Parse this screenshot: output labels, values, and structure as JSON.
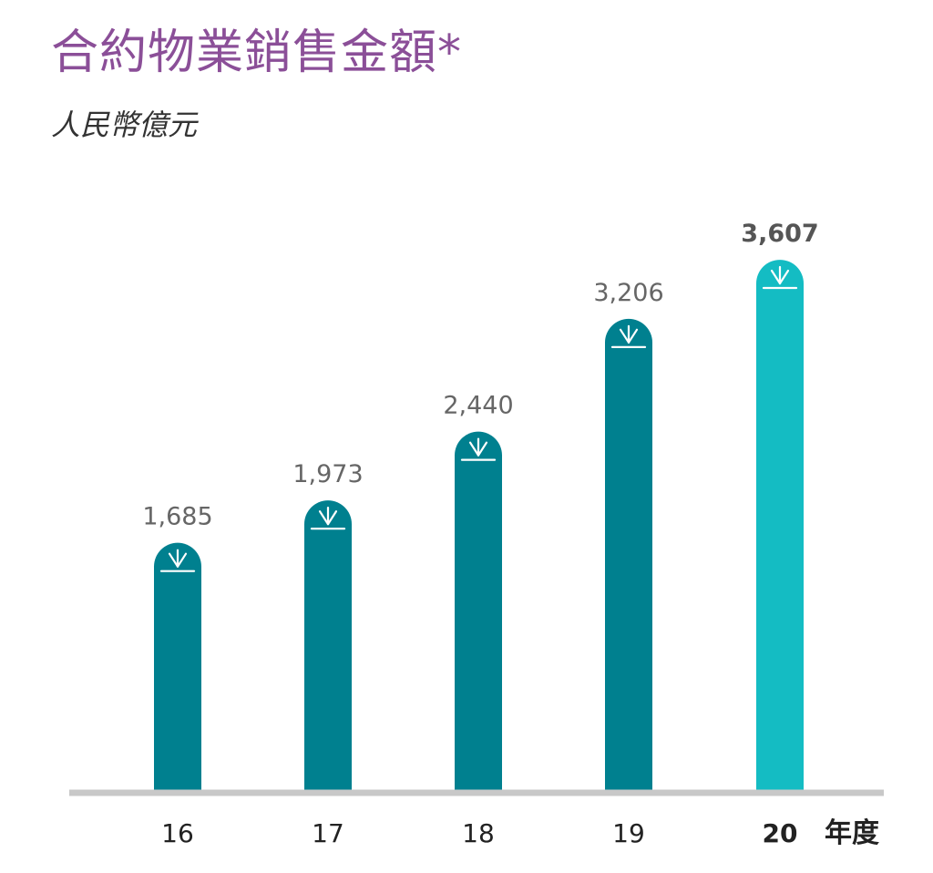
{
  "chart_data": {
    "type": "bar",
    "title": "合約物業銷售金額*",
    "subtitle": "人民幣億元",
    "categories": [
      "16",
      "17",
      "18",
      "19",
      "20"
    ],
    "values": [
      1685,
      1973,
      2440,
      3206,
      3607
    ],
    "value_labels": [
      "1,685",
      "1,973",
      "2,440",
      "3,206",
      "3,607"
    ],
    "x_unit_label": "年度",
    "highlight_index": 4,
    "ylim": [
      0,
      3700
    ],
    "grid": false,
    "legend": "none",
    "colors": {
      "bar": "#00808f",
      "bar_highlight": "#14bcc3",
      "title": "#8b4f98",
      "axis": "#c8c8c8",
      "icon": "#ffffff"
    },
    "icon": "down-arrow-icon"
  }
}
